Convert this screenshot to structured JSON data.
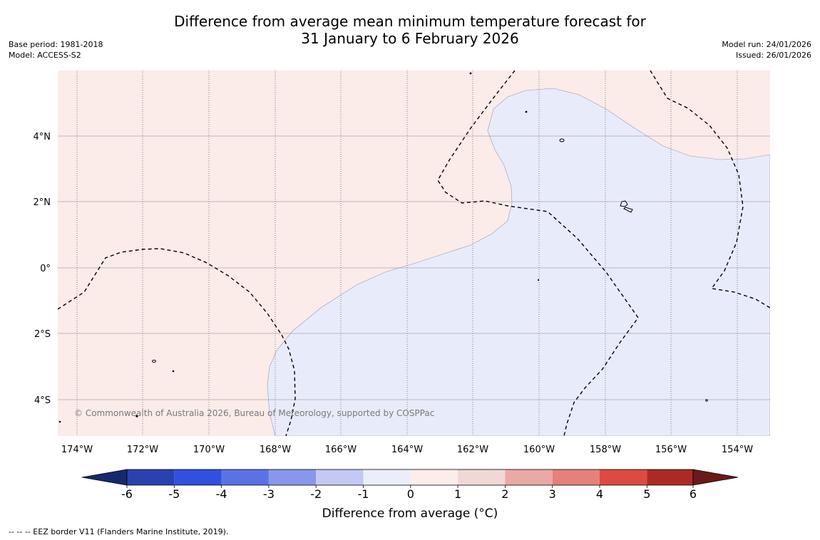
{
  "title": {
    "line1": "Difference from average mean minimum temperature forecast for",
    "line2": "31 January to 6 February 2026"
  },
  "meta_left": {
    "base_period": "Base period: 1981-2018",
    "model": "Model: ACCESS-S2"
  },
  "meta_right": {
    "model_run": "Model run: 24/01/2026",
    "issued": "Issued: 26/01/2026"
  },
  "map": {
    "lon_labels": [
      "174°W",
      "172°W",
      "170°W",
      "168°W",
      "166°W",
      "164°W",
      "162°W",
      "160°W",
      "158°W",
      "156°W",
      "154°W"
    ],
    "lat_labels": [
      "4°N",
      "2°N",
      "0°",
      "2°S",
      "4°S"
    ],
    "copyright": "© Commonwealth of Australia 2026, Bureau of Meteorology, supported by COSPPac",
    "colors": {
      "warm_region": "#fbebe9",
      "cool_region": "#e8ebfa"
    }
  },
  "colorbar": {
    "ticks": [
      "-6",
      "-5",
      "-4",
      "-3",
      "-2",
      "-1",
      "0",
      "1",
      "2",
      "3",
      "4",
      "5",
      "6"
    ],
    "colors": [
      "#16296e",
      "#2a41b0",
      "#3150e0",
      "#5a72e6",
      "#8797ec",
      "#c3c9f4",
      "#ebedfb",
      "#fcecea",
      "#efd8d5",
      "#eba8a4",
      "#e6817a",
      "#dc4b42",
      "#ad2a24",
      "#6b1a17"
    ],
    "label": "Difference from average (°C)"
  },
  "footer": {
    "legend_text": "--  --  -- EEZ border V11 (Flanders Marine Institute, 2019)."
  }
}
